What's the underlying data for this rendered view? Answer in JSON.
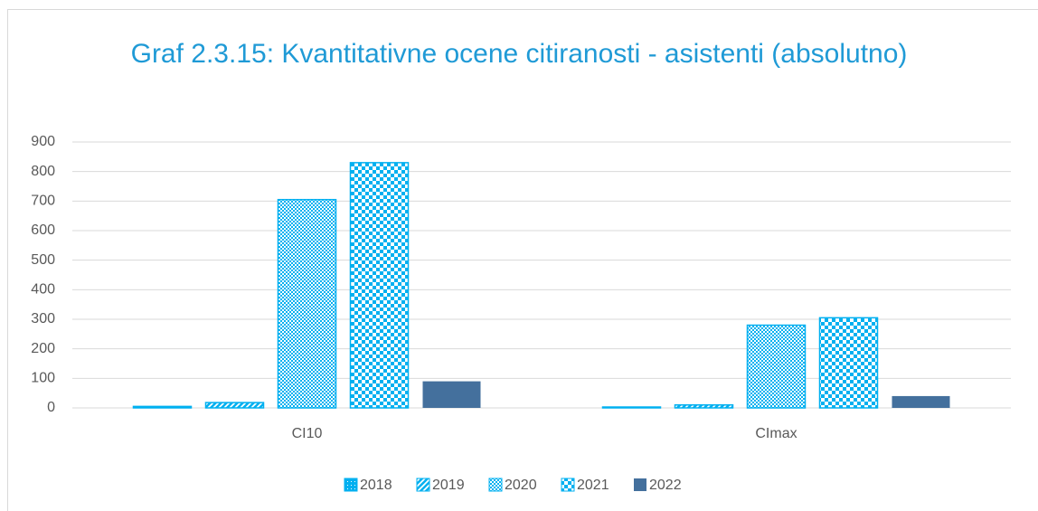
{
  "chart_data": {
    "type": "bar",
    "title": "Graf 2.3.15: Kvantitativne ocene citiranosti - asistenti (absolutno)",
    "categories": [
      "CI10",
      "CImax"
    ],
    "series": [
      {
        "name": "2018",
        "color": "#00b0f0",
        "pattern": "dots",
        "values": [
          5,
          3
        ]
      },
      {
        "name": "2019",
        "color": "#00b0f0",
        "pattern": "diagonal",
        "values": [
          18,
          10
        ]
      },
      {
        "name": "2020",
        "color": "#00b0f0",
        "pattern": "fine-checker",
        "values": [
          705,
          280
        ]
      },
      {
        "name": "2021",
        "color": "#00b0f0",
        "pattern": "checker",
        "values": [
          830,
          305
        ]
      },
      {
        "name": "2022",
        "color": "#44709d",
        "pattern": "solid",
        "values": [
          90,
          40
        ]
      }
    ],
    "ylim": [
      0,
      900
    ],
    "yticks": [
      0,
      100,
      200,
      300,
      400,
      500,
      600,
      700,
      800,
      900
    ],
    "grid": true,
    "legend": "bottom"
  }
}
